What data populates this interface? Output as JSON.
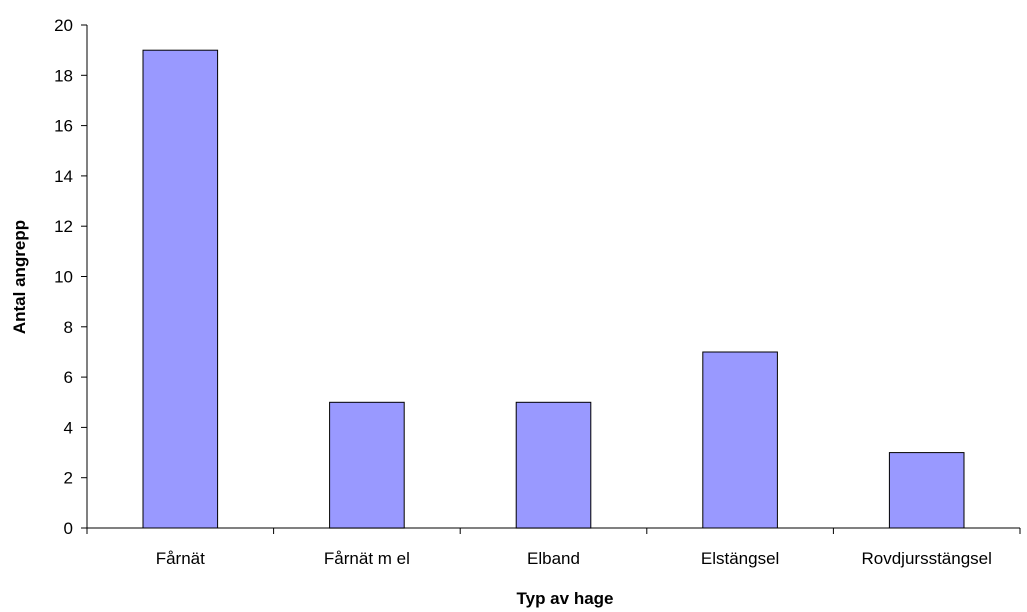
{
  "chart_data": {
    "type": "bar",
    "categories": [
      "Fårnät",
      "Fårnät m el",
      "Elband",
      "Elstängsel",
      "Rovdjursstängsel"
    ],
    "series": [
      {
        "values": [
          19,
          5,
          5,
          7,
          3
        ]
      }
    ],
    "xlabel": "Typ av hage",
    "ylabel": "Antal angrepp",
    "ylim": [
      0,
      20
    ],
    "yticks": [
      "0",
      "2",
      "4",
      "6",
      "8",
      "10",
      "12",
      "14",
      "16",
      "18",
      "20"
    ],
    "grid": false,
    "legend": "none",
    "colors": {
      "bar_fill": "#9999ff",
      "bar_stroke": "#000000",
      "axis": "#000000"
    }
  }
}
